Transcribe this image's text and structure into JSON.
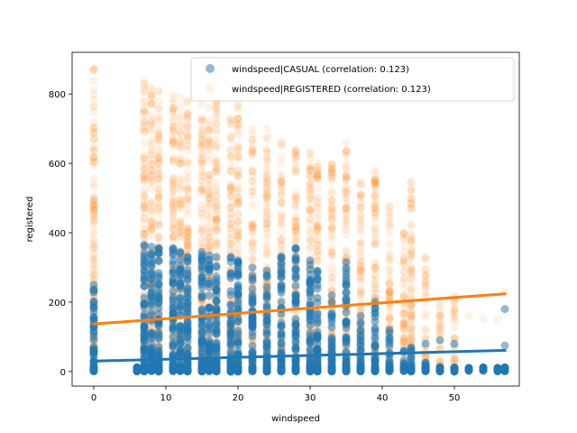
{
  "chart_data": {
    "type": "scatter",
    "title": "",
    "xlabel": "windspeed",
    "ylabel": "registered",
    "xlim": [
      -3,
      59
    ],
    "ylim": [
      -42,
      920
    ],
    "xticks": [
      0,
      10,
      20,
      30,
      40,
      50
    ],
    "yticks": [
      0,
      200,
      400,
      600,
      800
    ],
    "grid": false,
    "legend_position": "top-right",
    "x_levels": [
      0,
      6,
      7,
      8,
      9,
      11,
      12,
      13,
      15,
      16,
      17,
      19,
      20,
      22,
      24,
      26,
      28,
      30,
      31,
      33,
      35,
      37,
      39,
      41,
      43,
      44,
      46,
      48,
      50,
      52,
      54,
      56,
      57
    ],
    "series": [
      {
        "name": "windspeed|CASUAL (correlation: 0.123)",
        "color": "#1f77b4",
        "point_alpha": 0.5,
        "band_max": [
          250,
          0,
          365,
          360,
          355,
          355,
          345,
          330,
          345,
          335,
          330,
          330,
          320,
          300,
          290,
          330,
          355,
          320,
          290,
          220,
          315,
          160,
          200,
          120,
          60,
          70,
          25,
          0,
          0,
          0,
          0,
          0,
          0
        ],
        "points": [
          [
            43,
            10
          ],
          [
            44,
            20
          ],
          [
            46,
            80
          ],
          [
            48,
            90
          ],
          [
            50,
            80
          ],
          [
            48,
            5
          ],
          [
            52,
            5
          ],
          [
            54,
            2
          ],
          [
            56,
            5
          ],
          [
            57,
            180
          ],
          [
            57,
            75
          ],
          [
            46,
            25
          ],
          [
            44,
            60
          ]
        ],
        "fit_line": [
          [
            0,
            30
          ],
          [
            57,
            61
          ]
        ]
      },
      {
        "name": "windspeed|REGISTERED (correlation: 0.123)",
        "color": "#ff7f0e",
        "point_alpha": 0.1,
        "band_max": [
          875,
          0,
          840,
          820,
          810,
          800,
          790,
          780,
          770,
          760,
          780,
          730,
          770,
          700,
          700,
          660,
          640,
          630,
          600,
          600,
          660,
          545,
          580,
          475,
          400,
          545,
          325,
          190,
          215,
          0,
          0,
          0,
          0
        ],
        "points": [
          [
            37,
            540
          ],
          [
            39,
            480
          ],
          [
            41,
            475
          ],
          [
            43,
            400
          ],
          [
            44,
            545
          ],
          [
            48,
            195
          ],
          [
            50,
            215
          ],
          [
            52,
            160
          ],
          [
            54,
            150
          ],
          [
            56,
            150
          ],
          [
            57,
            230
          ],
          [
            46,
            330
          ],
          [
            46,
            120
          ],
          [
            48,
            120
          ]
        ],
        "fit_line": [
          [
            0,
            137
          ],
          [
            57,
            224
          ]
        ]
      }
    ]
  }
}
